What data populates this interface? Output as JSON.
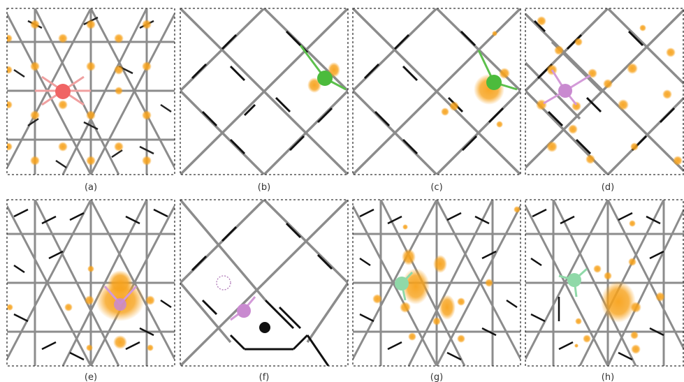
{
  "figure": {
    "panels": [
      {
        "id": "a",
        "label": "(a)",
        "atom_color": "#f06464",
        "bond_color": "#f0a0a0"
      },
      {
        "id": "b",
        "label": "(b)",
        "atom_color": "#4cbb3c",
        "bond_color": "#5cc04c"
      },
      {
        "id": "c",
        "label": "(c)",
        "atom_color": "#4cbb3c",
        "bond_color": "#5cc04c"
      },
      {
        "id": "d",
        "label": "(d)",
        "atom_color": "#c98ad0",
        "bond_color": "#d39ad8"
      },
      {
        "id": "e",
        "label": "(e)",
        "atom_color": "#c98ad0",
        "bond_color": "#d39ad8"
      },
      {
        "id": "f",
        "label": "(f)",
        "atom_color": "#c98ad0",
        "bond_color": "#d39ad8"
      },
      {
        "id": "g",
        "label": "(g)",
        "atom_color": "#8fd9a8",
        "bond_color": "#8fd9a8"
      },
      {
        "id": "h",
        "label": "(h)",
        "atom_color": "#8fd9a8",
        "bond_color": "#8fd9a8"
      }
    ],
    "colors": {
      "density": "#f7a21b",
      "lattice_gray": "#8c8c8c",
      "lattice_black": "#111111",
      "frame": "#333333"
    }
  }
}
